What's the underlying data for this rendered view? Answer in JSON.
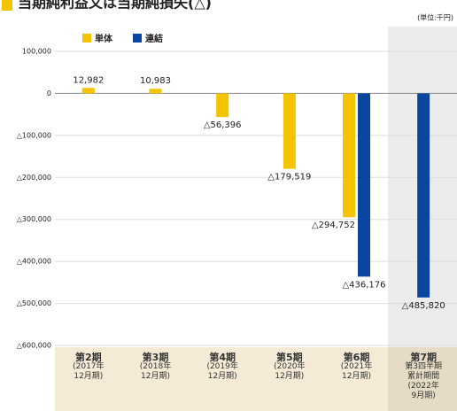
{
  "chart_data": {
    "type": "bar",
    "title": "当期純利益又は当期純損失(△)",
    "unit": "(単位:千円)",
    "categories": [
      "第2期\n(2017年\n12月期)",
      "第3期\n(2018年\n12月期)",
      "第4期\n(2019年\n12月期)",
      "第5期\n(2020年\n12月期)",
      "第6期\n(2021年\n12月期)",
      "第7期\n第3四半期\n累計期間\n(2022年\n9月期)"
    ],
    "series": [
      {
        "name": "単体",
        "color": "#f5c400",
        "values": [
          12982,
          10983,
          -56396,
          -179519,
          -294752,
          null
        ],
        "value_labels": [
          "12,982",
          "10,983",
          "△56,396",
          "△179,519",
          "△294,752",
          null
        ]
      },
      {
        "name": "連結",
        "color": "#0a46a0",
        "values": [
          null,
          null,
          null,
          null,
          -436176,
          -485820
        ],
        "value_labels": [
          null,
          null,
          null,
          null,
          "△436,176",
          "△485,820"
        ]
      }
    ],
    "ylim": [
      -600000,
      100000
    ],
    "yticks": [
      {
        "value": 100000,
        "label": "100,000"
      },
      0,
      {
        "value": -100000,
        "label": "△100,000"
      },
      {
        "value": -200000,
        "label": "△200,000"
      },
      {
        "value": -300000,
        "label": "△300,000"
      },
      {
        "value": -400000,
        "label": "△400,000"
      },
      {
        "value": -500000,
        "label": "△500,000"
      },
      {
        "value": -600000,
        "label": "△600,000"
      }
    ],
    "grid": true
  }
}
